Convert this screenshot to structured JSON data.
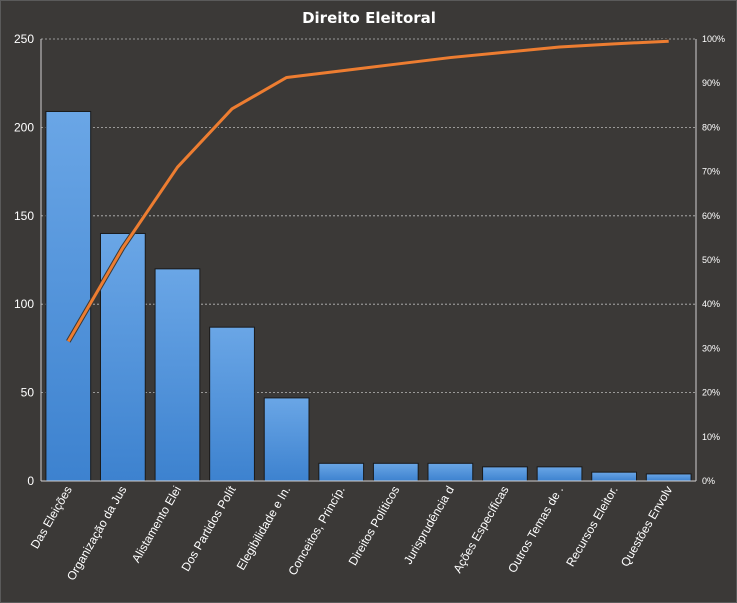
{
  "chart_data": {
    "type": "bar",
    "title": "Direito Eleitoral",
    "categories": [
      "Das Eleições",
      "Organização da Jus",
      "Alistamento Elei",
      "Dos Partidos Polít",
      "Elegibilidade e In.",
      "Conceitos, Princíp.",
      "Direitos Políticos",
      "Jurisprudência d",
      "Ações Específicas",
      "Outros Temas de .",
      "Recursos Eleitor.",
      "Questões Envolv"
    ],
    "series": [
      {
        "type": "bar",
        "axis": "left",
        "color": "#4a90d9",
        "values": [
          209,
          140,
          120,
          87,
          47,
          10,
          10,
          10,
          8,
          8,
          5,
          4
        ]
      },
      {
        "type": "line",
        "axis": "right",
        "color": "#ed7d31",
        "values": [
          31.6,
          52.8,
          71.0,
          84.2,
          91.3,
          92.8,
          94.3,
          95.8,
          97.0,
          98.2,
          98.9,
          99.5
        ]
      }
    ],
    "ylim": [
      0,
      250
    ],
    "y_ticks": [
      0,
      50,
      100,
      150,
      200,
      250
    ],
    "y2lim": [
      0,
      100
    ],
    "y2_ticks": [
      "0%",
      "10%",
      "20%",
      "30%",
      "40%",
      "50%",
      "60%",
      "70%",
      "80%",
      "90%",
      "100%"
    ],
    "grid": true,
    "legend": "none"
  }
}
